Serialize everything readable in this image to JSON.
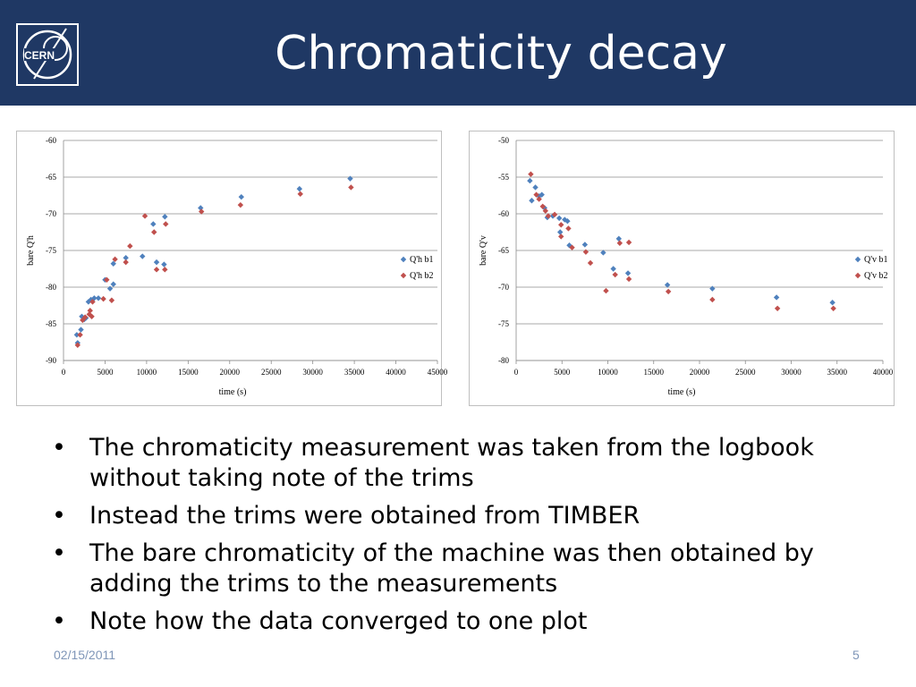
{
  "header": {
    "title": "Chromaticity decay",
    "logo_text": "CERN"
  },
  "bullets": [
    "The chromaticity measurement was taken from the logbook without taking note of the trims",
    "Instead the trims were obtained from TIMBER",
    "The bare chromaticity of the machine was then obtained by adding the trims to the measurements",
    "Note how the data converged to one plot"
  ],
  "bullet_glyph": "•",
  "footer": {
    "date": "02/15/2011",
    "page": "5"
  },
  "chart_data": [
    {
      "type": "scatter",
      "xlabel": "time (s)",
      "ylabel": "bare Q'h",
      "xlim": [
        0,
        45000
      ],
      "ylim": [
        -90,
        -60
      ],
      "xticks": [
        0,
        5000,
        10000,
        15000,
        20000,
        25000,
        30000,
        35000,
        40000,
        45000
      ],
      "yticks": [
        -90,
        -85,
        -80,
        -75,
        -70,
        -65,
        -60
      ],
      "grid": "horizontal",
      "legend": "right",
      "series": [
        {
          "name": "Q'h b1",
          "color": "#4f81bd",
          "marker": "diamond",
          "points": [
            [
              1600,
              -86.5
            ],
            [
              1700,
              -87.6
            ],
            [
              2100,
              -85.8
            ],
            [
              2200,
              -84.0
            ],
            [
              2500,
              -84.4
            ],
            [
              2700,
              -84.2
            ],
            [
              3000,
              -82.0
            ],
            [
              3300,
              -81.7
            ],
            [
              3700,
              -81.5
            ],
            [
              4200,
              -81.5
            ],
            [
              5000,
              -79.0
            ],
            [
              5600,
              -80.2
            ],
            [
              6000,
              -79.6
            ],
            [
              6000,
              -76.8
            ],
            [
              7500,
              -76.0
            ],
            [
              9500,
              -75.8
            ],
            [
              10800,
              -71.4
            ],
            [
              11200,
              -76.6
            ],
            [
              12100,
              -76.9
            ],
            [
              12200,
              -70.4
            ],
            [
              16500,
              -69.2
            ],
            [
              21400,
              -67.7
            ],
            [
              28400,
              -66.6
            ],
            [
              34500,
              -65.2
            ]
          ]
        },
        {
          "name": "Q'h b2",
          "color": "#c0504d",
          "marker": "diamond",
          "points": [
            [
              1700,
              -87.9
            ],
            [
              2000,
              -86.5
            ],
            [
              2300,
              -84.5
            ],
            [
              2600,
              -84.1
            ],
            [
              3100,
              -83.7
            ],
            [
              3200,
              -83.2
            ],
            [
              3400,
              -84.0
            ],
            [
              3500,
              -82.0
            ],
            [
              4800,
              -81.6
            ],
            [
              5200,
              -79.0
            ],
            [
              5800,
              -81.8
            ],
            [
              6200,
              -76.2
            ],
            [
              7500,
              -76.6
            ],
            [
              8000,
              -74.4
            ],
            [
              9800,
              -70.3
            ],
            [
              10900,
              -72.5
            ],
            [
              11200,
              -77.6
            ],
            [
              12200,
              -77.6
            ],
            [
              12300,
              -71.4
            ],
            [
              16600,
              -69.7
            ],
            [
              21300,
              -68.8
            ],
            [
              28500,
              -67.3
            ],
            [
              34600,
              -66.4
            ]
          ]
        }
      ]
    },
    {
      "type": "scatter",
      "xlabel": "time (s)",
      "ylabel": "bare Q'v",
      "xlim": [
        0,
        40000
      ],
      "ylim": [
        -80,
        -50
      ],
      "xticks": [
        0,
        5000,
        10000,
        15000,
        20000,
        25000,
        30000,
        35000,
        40000
      ],
      "yticks": [
        -80,
        -75,
        -70,
        -65,
        -60,
        -55,
        -50
      ],
      "grid": "horizontal",
      "legend": "right",
      "series": [
        {
          "name": "Q'v b1",
          "color": "#4f81bd",
          "marker": "diamond",
          "points": [
            [
              1500,
              -55.5
            ],
            [
              1700,
              -58.2
            ],
            [
              2100,
              -56.4
            ],
            [
              2500,
              -57.6
            ],
            [
              2800,
              -57.4
            ],
            [
              3100,
              -59.2
            ],
            [
              3400,
              -60.5
            ],
            [
              4000,
              -60.3
            ],
            [
              4700,
              -60.6
            ],
            [
              4800,
              -62.5
            ],
            [
              5300,
              -60.8
            ],
            [
              5600,
              -61.0
            ],
            [
              5800,
              -64.3
            ],
            [
              7500,
              -64.2
            ],
            [
              9500,
              -65.3
            ],
            [
              10600,
              -67.5
            ],
            [
              11200,
              -63.4
            ],
            [
              12200,
              -68.1
            ],
            [
              16500,
              -69.7
            ],
            [
              21400,
              -70.2
            ],
            [
              28400,
              -71.4
            ],
            [
              34500,
              -72.1
            ]
          ]
        },
        {
          "name": "Q'v b2",
          "color": "#c0504d",
          "marker": "diamond",
          "points": [
            [
              1600,
              -54.6
            ],
            [
              2200,
              -57.4
            ],
            [
              2500,
              -58.0
            ],
            [
              2900,
              -59.0
            ],
            [
              3200,
              -59.6
            ],
            [
              3500,
              -60.3
            ],
            [
              4200,
              -60.1
            ],
            [
              4900,
              -61.5
            ],
            [
              4900,
              -63.1
            ],
            [
              5700,
              -62.0
            ],
            [
              6100,
              -64.6
            ],
            [
              7600,
              -65.2
            ],
            [
              8100,
              -66.7
            ],
            [
              9800,
              -70.5
            ],
            [
              10800,
              -68.3
            ],
            [
              11300,
              -64.0
            ],
            [
              12300,
              -63.9
            ],
            [
              12300,
              -68.9
            ],
            [
              16600,
              -70.6
            ],
            [
              21400,
              -71.7
            ],
            [
              28500,
              -72.9
            ],
            [
              34600,
              -72.9
            ]
          ]
        }
      ]
    }
  ]
}
